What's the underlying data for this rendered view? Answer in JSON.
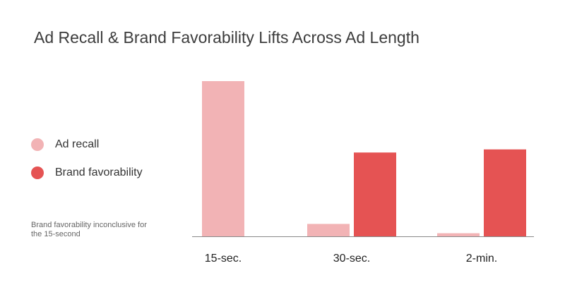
{
  "chart_data": {
    "type": "bar",
    "title": "Ad Recall & Brand Favorability Lifts Across Ad Length",
    "xlabel": "",
    "ylabel": "",
    "categories": [
      "15-sec.",
      "30-sec.",
      "2-min."
    ],
    "series": [
      {
        "name": "Ad recall",
        "color": "#f2b3b5",
        "values": [
          100,
          8,
          2
        ]
      },
      {
        "name": "Brand favorability",
        "color": "#e55353",
        "values": [
          null,
          54,
          56
        ]
      }
    ],
    "ylim": [
      0,
      100
    ],
    "grid": false,
    "legend": "left"
  },
  "note": "Brand favorability inconclusive for the 15-second"
}
